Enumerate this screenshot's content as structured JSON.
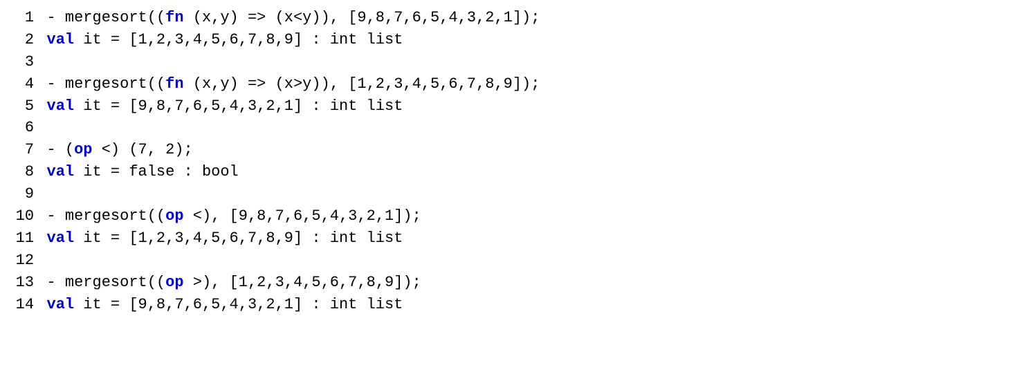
{
  "code": {
    "font_family": "Courier New",
    "font_size_pt": 16,
    "keyword_color": "#0000c8",
    "text_color": "#000000",
    "background_color": "#ffffff",
    "lines": [
      {
        "n": "1",
        "tokens": [
          {
            "t": "- mergesort(("
          },
          {
            "t": "fn",
            "kw": true
          },
          {
            "t": " (x,y) => (x<y)), [9,8,7,6,5,4,3,2,1]);"
          }
        ]
      },
      {
        "n": "2",
        "tokens": [
          {
            "t": "val",
            "kw": true
          },
          {
            "t": " it = [1,2,3,4,5,6,7,8,9] : int list"
          }
        ]
      },
      {
        "n": "3",
        "tokens": [
          {
            "t": ""
          }
        ]
      },
      {
        "n": "4",
        "tokens": [
          {
            "t": "- mergesort(("
          },
          {
            "t": "fn",
            "kw": true
          },
          {
            "t": " (x,y) => (x>y)), [1,2,3,4,5,6,7,8,9]);"
          }
        ]
      },
      {
        "n": "5",
        "tokens": [
          {
            "t": "val",
            "kw": true
          },
          {
            "t": " it = [9,8,7,6,5,4,3,2,1] : int list"
          }
        ]
      },
      {
        "n": "6",
        "tokens": [
          {
            "t": ""
          }
        ]
      },
      {
        "n": "7",
        "tokens": [
          {
            "t": "- ("
          },
          {
            "t": "op",
            "kw": true
          },
          {
            "t": " <) (7, 2);"
          }
        ]
      },
      {
        "n": "8",
        "tokens": [
          {
            "t": "val",
            "kw": true
          },
          {
            "t": " it = false : bool"
          }
        ]
      },
      {
        "n": "9",
        "tokens": [
          {
            "t": ""
          }
        ]
      },
      {
        "n": "10",
        "tokens": [
          {
            "t": "- mergesort(("
          },
          {
            "t": "op",
            "kw": true
          },
          {
            "t": " <), [9,8,7,6,5,4,3,2,1]);"
          }
        ]
      },
      {
        "n": "11",
        "tokens": [
          {
            "t": "val",
            "kw": true
          },
          {
            "t": " it = [1,2,3,4,5,6,7,8,9] : int list"
          }
        ]
      },
      {
        "n": "12",
        "tokens": [
          {
            "t": ""
          }
        ]
      },
      {
        "n": "13",
        "tokens": [
          {
            "t": "- mergesort(("
          },
          {
            "t": "op",
            "kw": true
          },
          {
            "t": " >), [1,2,3,4,5,6,7,8,9]);"
          }
        ]
      },
      {
        "n": "14",
        "tokens": [
          {
            "t": "val",
            "kw": true
          },
          {
            "t": " it = [9,8,7,6,5,4,3,2,1] : int list"
          }
        ]
      }
    ]
  }
}
